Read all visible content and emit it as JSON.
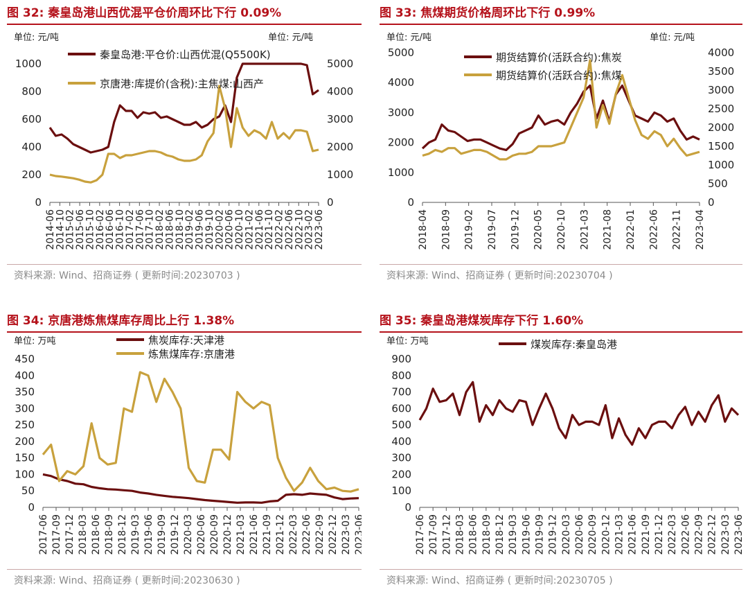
{
  "colors": {
    "title": "#b5121b",
    "series_dark": "#6b0f0f",
    "series_gold": "#c8a13d"
  },
  "panels": [
    {
      "title": "图 32:  秦皇岛港山西优混平仓价周环比下行 0.09%",
      "source": "资料来源:  Wind、招商证券 ( 更新时间:20230703 )",
      "unit_left": "单位:  元/吨",
      "unit_right": "单位:  元/吨",
      "chart_data": {
        "type": "line",
        "x_ticks": [
          "2014-06",
          "2014-10",
          "2015-02",
          "2015-06",
          "2015-10",
          "2016-02",
          "2016-06",
          "2016-10",
          "2017-02",
          "2017-06",
          "2017-10",
          "2018-02",
          "2018-06",
          "2018-10",
          "2019-02",
          "2019-06",
          "2019-10",
          "2020-02",
          "2020-06",
          "2020-10",
          "2021-02",
          "2021-06",
          "2021-10",
          "2022-02",
          "2022-06",
          "2022-10",
          "2023-02",
          "2023-06"
        ],
        "y_left": {
          "ticks": [
            "0",
            "200",
            "400",
            "600",
            "800",
            "1000"
          ],
          "min": 0,
          "max": 1000
        },
        "y_right": {
          "ticks": [
            "0",
            "1000",
            "2000",
            "3000",
            "4000",
            "5000"
          ],
          "min": 0,
          "max": 5000
        },
        "series": [
          {
            "name": "秦皇岛港:平仓价:山西优混(Q5500K)",
            "axis": "left",
            "color": "#6b0f0f",
            "values": [
              540,
              480,
              490,
              460,
              420,
              400,
              380,
              360,
              370,
              380,
              400,
              580,
              700,
              660,
              660,
              610,
              650,
              640,
              650,
              610,
              620,
              600,
              580,
              560,
              560,
              580,
              540,
              560,
              600,
              620,
              700,
              580,
              900,
              1000,
              1000,
              1000,
              1000,
              1000,
              1000,
              1000,
              1000,
              1000,
              1000,
              1000,
              990,
              780,
              810
            ]
          },
          {
            "name": "京唐港:库提价(含税):主焦煤:山西产",
            "axis": "right",
            "color": "#c8a13d",
            "values": [
              1000,
              950,
              930,
              900,
              870,
              820,
              750,
              720,
              800,
              1000,
              1750,
              1750,
              1600,
              1700,
              1700,
              1750,
              1800,
              1850,
              1850,
              1800,
              1700,
              1650,
              1550,
              1500,
              1500,
              1550,
              1700,
              2200,
              2500,
              4200,
              3400,
              2000,
              3400,
              2700,
              2400,
              2600,
              2500,
              2300,
              2900,
              2300,
              2500,
              2300,
              2600,
              2600,
              2550,
              1850,
              1900
            ]
          }
        ]
      }
    },
    {
      "title": "图 33:  焦煤期货价格周环比下行 0.99%",
      "source": "资料来源:  Wind、招商证券 ( 更新时间:20230704 )",
      "unit_left": "单位:  元/吨",
      "unit_right": "单位:  元/吨",
      "chart_data": {
        "type": "line",
        "x_ticks": [
          "2018-04",
          "2018-09",
          "2019-02",
          "2019-07",
          "2019-12",
          "2020-05",
          "2020-10",
          "2021-03",
          "2021-08",
          "2022-01",
          "2022-06",
          "2022-11",
          "2023-04"
        ],
        "y_left": {
          "ticks": [
            "0",
            "1000",
            "2000",
            "3000",
            "4000",
            "5000"
          ],
          "min": 0,
          "max": 5000
        },
        "y_right": {
          "ticks": [
            "0",
            "500",
            "1000",
            "1500",
            "2000",
            "2500",
            "3000",
            "3500",
            "4000"
          ],
          "min": 0,
          "max": 4000
        },
        "series": [
          {
            "name": "期货结算价(活跃合约):焦炭",
            "axis": "left",
            "color": "#6b0f0f",
            "values": [
              1800,
              2000,
              2100,
              2600,
              2400,
              2350,
              2200,
              2050,
              2100,
              2100,
              2000,
              1900,
              1800,
              1750,
              1950,
              2300,
              2400,
              2500,
              2900,
              2600,
              2700,
              2750,
              2600,
              3000,
              3300,
              3700,
              3900,
              2800,
              3400,
              2700,
              3600,
              3900,
              3400,
              2900,
              2800,
              2700,
              3000,
              2900,
              2700,
              2800,
              2400,
              2100,
              2200,
              2100
            ]
          },
          {
            "name": "期货结算价(活跃合约):焦煤",
            "axis": "right",
            "color": "#c8a13d",
            "values": [
              1250,
              1300,
              1400,
              1350,
              1450,
              1450,
              1300,
              1350,
              1400,
              1400,
              1350,
              1250,
              1150,
              1150,
              1250,
              1300,
              1300,
              1350,
              1500,
              1500,
              1500,
              1550,
              1600,
              2000,
              2400,
              2800,
              3800,
              2000,
              2600,
              2100,
              2900,
              3400,
              2800,
              2200,
              1800,
              1700,
              1900,
              1800,
              1500,
              1700,
              1450,
              1250,
              1300,
              1350
            ]
          }
        ]
      }
    },
    {
      "title": "图 34:  京唐港炼焦煤库存周比上行 1.38%",
      "source": "资料来源:  Wind、招商证券 ( 更新时间:20230630 )",
      "unit_left": "单位:  万吨",
      "chart_data": {
        "type": "line",
        "x_ticks": [
          "2017-06",
          "2017-09",
          "2017-12",
          "2018-03",
          "2018-06",
          "2018-09",
          "2018-12",
          "2019-03",
          "2019-06",
          "2019-09",
          "2019-12",
          "2020-03",
          "2020-06",
          "2020-09",
          "2020-12",
          "2021-03",
          "2021-06",
          "2021-09",
          "2021-12",
          "2022-03",
          "2022-06",
          "2022-09",
          "2022-12",
          "2023-03",
          "2023-06"
        ],
        "y_left": {
          "ticks": [
            "0",
            "50",
            "100",
            "150",
            "200",
            "250",
            "300",
            "350",
            "400",
            "450"
          ],
          "min": 0,
          "max": 450
        },
        "series": [
          {
            "name": "焦炭库存:天津港",
            "axis": "left",
            "color": "#6b0f0f",
            "values": [
              100,
              95,
              85,
              80,
              72,
              70,
              62,
              58,
              55,
              54,
              52,
              50,
              45,
              42,
              38,
              35,
              32,
              30,
              28,
              25,
              22,
              20,
              18,
              16,
              14,
              15,
              15,
              14,
              18,
              20,
              38,
              40,
              38,
              42,
              40,
              38,
              30,
              25,
              27,
              28
            ]
          },
          {
            "name": "炼焦煤库存:京唐港",
            "axis": "left",
            "color": "#c8a13d",
            "values": [
              160,
              190,
              80,
              110,
              100,
              125,
              255,
              150,
              130,
              135,
              300,
              290,
              410,
              400,
              320,
              390,
              350,
              300,
              120,
              80,
              75,
              175,
              175,
              145,
              350,
              320,
              300,
              320,
              310,
              150,
              90,
              50,
              75,
              120,
              80,
              55,
              60,
              50,
              48,
              55
            ]
          }
        ]
      }
    },
    {
      "title": "图 35:  秦皇岛港煤炭库存下行 1.60%",
      "source": "资料来源:  Wind、招商证券 ( 更新时间:20230705 )",
      "unit_left": "单位:  万吨",
      "chart_data": {
        "type": "line",
        "x_ticks": [
          "2017-06",
          "2017-09",
          "2017-12",
          "2018-03",
          "2018-06",
          "2018-09",
          "2018-12",
          "2019-03",
          "2019-06",
          "2019-09",
          "2019-12",
          "2020-03",
          "2020-06",
          "2020-09",
          "2020-12",
          "2021-03",
          "2021-06",
          "2021-09",
          "2021-12",
          "2022-03",
          "2022-06",
          "2022-09",
          "2022-12",
          "2023-03",
          "2023-06"
        ],
        "y_left": {
          "ticks": [
            "0",
            "100",
            "200",
            "300",
            "400",
            "500",
            "600",
            "700",
            "800",
            "900"
          ],
          "min": 0,
          "max": 900
        },
        "series": [
          {
            "name": "煤炭库存:秦皇岛港",
            "axis": "left",
            "color": "#6b0f0f",
            "values": [
              530,
              600,
              720,
              640,
              650,
              690,
              560,
              700,
              760,
              520,
              620,
              560,
              650,
              600,
              580,
              650,
              640,
              500,
              600,
              690,
              600,
              480,
              420,
              560,
              500,
              520,
              520,
              500,
              620,
              420,
              540,
              440,
              380,
              480,
              420,
              500,
              520,
              520,
              480,
              560,
              610,
              500,
              580,
              520,
              620,
              680,
              520,
              600,
              560
            ]
          }
        ]
      }
    }
  ]
}
